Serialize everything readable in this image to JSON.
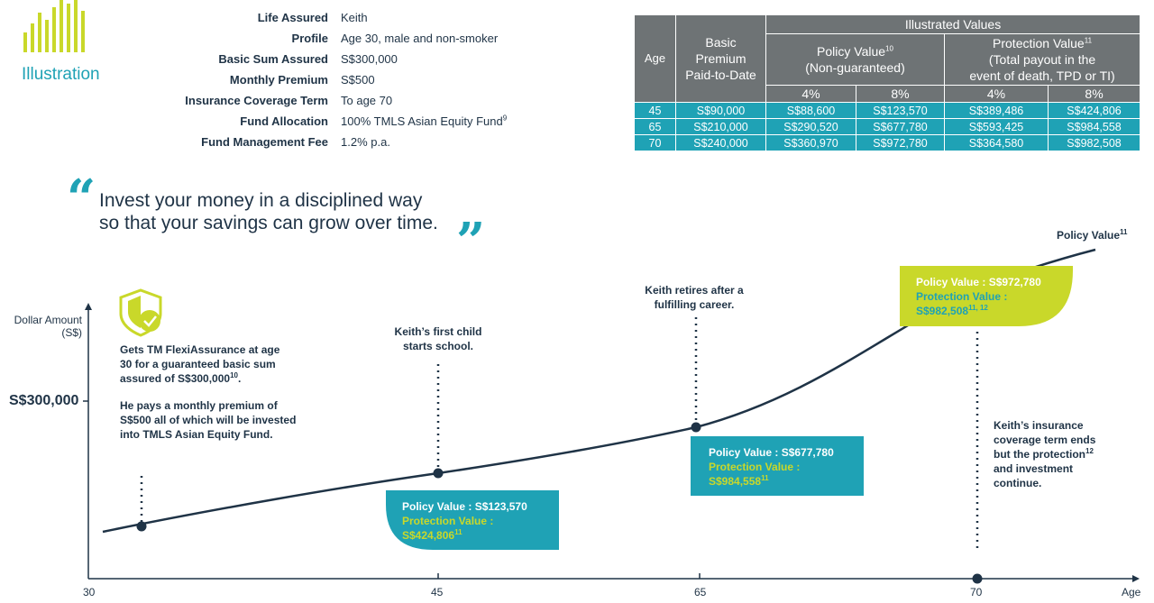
{
  "logo": {
    "label": "Illustration",
    "icon": "bar-chart-icon"
  },
  "profile": [
    {
      "label": "Life Assured",
      "value": "Keith",
      "sup": ""
    },
    {
      "label": "Profile",
      "value": "Age 30, male and non-smoker",
      "sup": ""
    },
    {
      "label": "Basic Sum Assured",
      "value": "S$300,000",
      "sup": ""
    },
    {
      "label": "Monthly Premium",
      "value": "S$500",
      "sup": ""
    },
    {
      "label": "Insurance Coverage Term",
      "value": "To age 70",
      "sup": ""
    },
    {
      "label": "Fund Allocation",
      "value": "100% TMLS Asian Equity Fund",
      "sup": "9"
    },
    {
      "label": "Fund Management Fee",
      "value": "1.2% p.a.",
      "sup": ""
    }
  ],
  "table": {
    "age_header": "Age",
    "premium_header_l1": "Basic",
    "premium_header_l2": "Premium",
    "premium_header_l3": "Paid-to-Date",
    "illustrated_header": "Illustrated Values",
    "policy_header": "Policy Value",
    "policy_sup": "10",
    "policy_sub": "(Non-guaranteed)",
    "protection_header": "Protection Value",
    "protection_sup": "11",
    "protection_sub_l1": "(Total payout in the",
    "protection_sub_l2": "event of death, TPD or TI)",
    "rate_a": "4%",
    "rate_b": "8%",
    "rows": [
      {
        "age": "45",
        "premium": "S$90,000",
        "pv4": "S$88,600",
        "pv8": "S$123,570",
        "prot4": "S$389,486",
        "prot8": "S$424,806"
      },
      {
        "age": "65",
        "premium": "S$210,000",
        "pv4": "S$290,520",
        "pv8": "S$677,780",
        "prot4": "S$593,425",
        "prot8": "S$984,558"
      },
      {
        "age": "70",
        "premium": "S$240,000",
        "pv4": "S$360,970",
        "pv8": "S$972,780",
        "prot4": "S$364,580",
        "prot8": "S$982,508"
      }
    ]
  },
  "quote": {
    "open": "“",
    "close": "”",
    "line1": "Invest your money in a disciplined way",
    "line2": "so that your savings can grow over time."
  },
  "chart": {
    "ylabel_l1": "Dollar Amount",
    "ylabel_l2": "(S$)",
    "y_tick": "S$300,000",
    "x_ticks": [
      "30",
      "45",
      "65",
      "70"
    ],
    "x_label": "Age",
    "line_label": "Policy Value",
    "line_label_sup": "11",
    "colors": {
      "teal": "#1fa2b5",
      "lime": "#c9d82a",
      "navy": "#1f3346"
    }
  },
  "milestones": {
    "start_l1": "Gets TM FlexiAssurance at age",
    "start_l2": "30 for a guaranteed basic sum",
    "start_l3": "assured of S$300,000",
    "start_l3_sup": "10",
    "start_l3_end": ".",
    "start_p2_l1": "He pays a monthly premium of",
    "start_p2_l2": "S$500 all of which will be invested",
    "start_p2_l3": "into TMLS Asian Equity Fund.",
    "school_l1": "Keith’s first child",
    "school_l2": "starts school.",
    "retire_l1": "Keith retires after a",
    "retire_l2": "fulfilling career.",
    "end_l1": "Keith’s insurance",
    "end_l2": "coverage term ends",
    "end_l3": "but the protection",
    "end_l3_sup": "12",
    "end_l4": "and investment",
    "end_l5": "continue."
  },
  "callouts": [
    {
      "policy": "Policy Value : S$123,570",
      "protection_label": "Protection Value :",
      "protection": "S$424,806",
      "sup": "11"
    },
    {
      "policy": "Policy Value : S$677,780",
      "protection_label": "Protection Value :",
      "protection": "S$984,558",
      "sup": "11"
    },
    {
      "policy": "Policy Value : S$972,780",
      "protection_label": "Protection Value :",
      "protection": "S$982,508",
      "sup": "11, 12"
    }
  ]
}
